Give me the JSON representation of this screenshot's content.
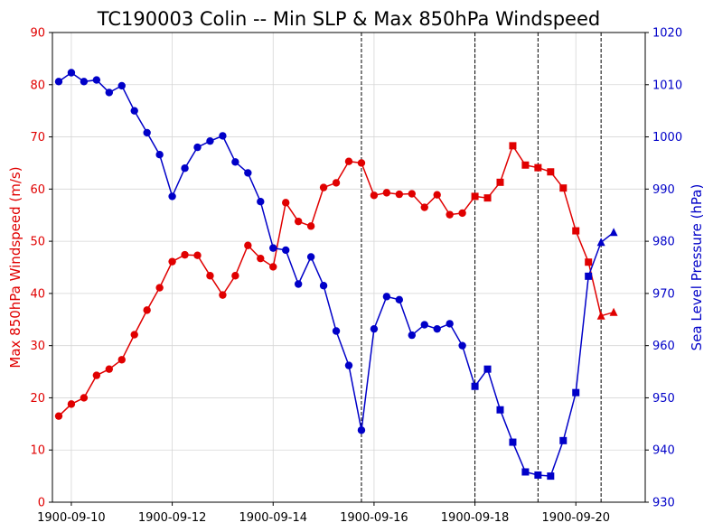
{
  "chart_data": {
    "type": "line",
    "title": "TC190003 Colin -- Min SLP & Max 850hPa Windspeed",
    "xlabel": "",
    "x_tick_labels": [
      "1900-09-10",
      "1900-09-12",
      "1900-09-14",
      "1900-09-16",
      "1900-09-18",
      "1900-09-20"
    ],
    "x_range": [
      "1900-09-09T15:00",
      "1900-09-21T09:00"
    ],
    "y_left": {
      "label": "Max 850hPa Windspeed (m/s)",
      "lim": [
        0,
        90
      ],
      "ticks": [
        "0",
        "10",
        "20",
        "30",
        "40",
        "50",
        "60",
        "70",
        "80",
        "90"
      ],
      "color": "#e00000"
    },
    "y_right": {
      "label": "Sea Level Pressure (hPa)",
      "lim": [
        930,
        1020
      ],
      "ticks": [
        "930",
        "940",
        "950",
        "960",
        "970",
        "980",
        "990",
        "1000",
        "1010",
        "1020"
      ],
      "color": "#0000c8"
    },
    "grid": true,
    "vertical_lines": [
      "1900-09-15T18:00",
      "1900-09-18T00:00",
      "1900-09-19T06:00",
      "1900-09-20T12:00"
    ],
    "x": [
      "1900-09-09T18:00",
      "1900-09-10T00:00",
      "1900-09-10T06:00",
      "1900-09-10T12:00",
      "1900-09-10T18:00",
      "1900-09-11T00:00",
      "1900-09-11T06:00",
      "1900-09-11T12:00",
      "1900-09-11T18:00",
      "1900-09-12T00:00",
      "1900-09-12T06:00",
      "1900-09-12T12:00",
      "1900-09-12T18:00",
      "1900-09-13T00:00",
      "1900-09-13T06:00",
      "1900-09-13T12:00",
      "1900-09-13T18:00",
      "1900-09-14T00:00",
      "1900-09-14T06:00",
      "1900-09-14T12:00",
      "1900-09-14T18:00",
      "1900-09-15T00:00",
      "1900-09-15T06:00",
      "1900-09-15T12:00",
      "1900-09-15T18:00",
      "1900-09-16T00:00",
      "1900-09-16T06:00",
      "1900-09-16T12:00",
      "1900-09-16T18:00",
      "1900-09-17T00:00",
      "1900-09-17T06:00",
      "1900-09-17T12:00",
      "1900-09-17T18:00",
      "1900-09-18T00:00",
      "1900-09-18T06:00",
      "1900-09-18T12:00",
      "1900-09-18T18:00",
      "1900-09-19T00:00",
      "1900-09-19T06:00",
      "1900-09-19T12:00",
      "1900-09-19T18:00",
      "1900-09-20T00:00",
      "1900-09-20T06:00",
      "1900-09-20T12:00",
      "1900-09-20T18:00"
    ],
    "markers": [
      "circle",
      "circle",
      "circle",
      "circle",
      "circle",
      "circle",
      "circle",
      "circle",
      "circle",
      "circle",
      "circle",
      "circle",
      "circle",
      "circle",
      "circle",
      "circle",
      "circle",
      "circle",
      "circle",
      "circle",
      "circle",
      "circle",
      "circle",
      "circle",
      "circle",
      "circle",
      "circle",
      "circle",
      "circle",
      "circle",
      "circle",
      "circle",
      "circle",
      "square",
      "square",
      "square",
      "square",
      "square",
      "square",
      "square",
      "square",
      "square",
      "square",
      "triangle",
      "triangle"
    ],
    "series": [
      {
        "name": "",
        "axis": "left",
        "color": "#e00000",
        "values": [
          16.5,
          18.8,
          20.0,
          24.3,
          25.5,
          27.3,
          32.1,
          36.8,
          41.1,
          46.1,
          47.4,
          47.3,
          43.4,
          39.7,
          43.4,
          49.2,
          46.7,
          45.1,
          57.4,
          53.8,
          52.9,
          60.3,
          61.2,
          65.3,
          65.0,
          58.8,
          59.3,
          59.0,
          59.1,
          56.5,
          58.9,
          55.1,
          55.4,
          58.6,
          58.3,
          61.3,
          68.3,
          64.6,
          64.1,
          63.3,
          60.2,
          52.0,
          46.0,
          35.7,
          36.4
        ]
      },
      {
        "name": "",
        "axis": "right",
        "color": "#0000c8",
        "values": [
          1010.6,
          1012.3,
          1010.6,
          1010.9,
          1008.5,
          1009.8,
          1005.0,
          1000.8,
          996.6,
          988.6,
          994.0,
          998.0,
          999.2,
          1000.2,
          995.2,
          993.1,
          987.6,
          978.7,
          978.3,
          971.8,
          977.0,
          971.5,
          962.8,
          956.2,
          943.8,
          963.2,
          969.4,
          968.8,
          962.0,
          964.0,
          963.2,
          964.2,
          960.0,
          952.2,
          955.5,
          947.7,
          941.5,
          935.8,
          935.2,
          935.0,
          941.8,
          951.0,
          973.3,
          979.8,
          981.7
        ]
      }
    ]
  }
}
